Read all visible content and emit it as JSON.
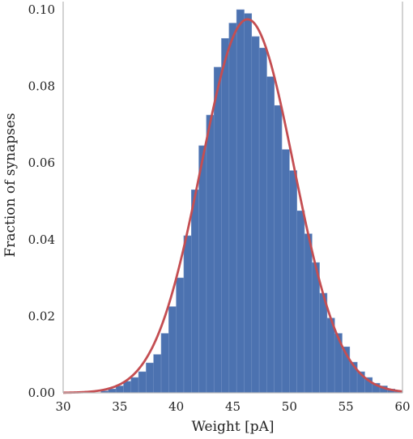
{
  "chart_data": {
    "type": "bar",
    "title": "",
    "xlabel": "Weight [pA]",
    "ylabel": "Fraction of synapses",
    "xlim": [
      30,
      60
    ],
    "ylim": [
      0,
      0.1
    ],
    "xticks": [
      30,
      35,
      40,
      45,
      50,
      55,
      60
    ],
    "xtick_labels": [
      "30",
      "35",
      "40",
      "45",
      "50",
      "55",
      "60"
    ],
    "yticks": [
      0,
      0.02,
      0.04,
      0.06,
      0.08,
      0.1
    ],
    "ytick_labels": [
      "0.00",
      "0.02",
      "0.04",
      "0.06",
      "0.08",
      "0.10"
    ],
    "grid": false,
    "bin_width": 0.667,
    "bins": [
      {
        "x": 33.67,
        "y": 0.0005
      },
      {
        "x": 34.33,
        "y": 0.001
      },
      {
        "x": 35.0,
        "y": 0.0018
      },
      {
        "x": 35.67,
        "y": 0.003
      },
      {
        "x": 36.33,
        "y": 0.004
      },
      {
        "x": 37.0,
        "y": 0.0055
      },
      {
        "x": 37.67,
        "y": 0.0078
      },
      {
        "x": 38.33,
        "y": 0.01
      },
      {
        "x": 39.0,
        "y": 0.0155
      },
      {
        "x": 39.67,
        "y": 0.0225
      },
      {
        "x": 40.33,
        "y": 0.03
      },
      {
        "x": 41.0,
        "y": 0.041
      },
      {
        "x": 41.67,
        "y": 0.053
      },
      {
        "x": 42.33,
        "y": 0.0645
      },
      {
        "x": 43.0,
        "y": 0.0725
      },
      {
        "x": 43.67,
        "y": 0.085
      },
      {
        "x": 44.33,
        "y": 0.0925
      },
      {
        "x": 45.0,
        "y": 0.0965
      },
      {
        "x": 45.67,
        "y": 0.1
      },
      {
        "x": 46.33,
        "y": 0.099
      },
      {
        "x": 47.0,
        "y": 0.093
      },
      {
        "x": 47.67,
        "y": 0.09
      },
      {
        "x": 48.33,
        "y": 0.0825
      },
      {
        "x": 49.0,
        "y": 0.075
      },
      {
        "x": 49.67,
        "y": 0.0635
      },
      {
        "x": 50.33,
        "y": 0.058
      },
      {
        "x": 51.0,
        "y": 0.0475
      },
      {
        "x": 51.67,
        "y": 0.0415
      },
      {
        "x": 52.33,
        "y": 0.034
      },
      {
        "x": 53.0,
        "y": 0.026
      },
      {
        "x": 53.67,
        "y": 0.0195
      },
      {
        "x": 54.33,
        "y": 0.0155
      },
      {
        "x": 55.0,
        "y": 0.012
      },
      {
        "x": 55.67,
        "y": 0.008
      },
      {
        "x": 56.33,
        "y": 0.0055
      },
      {
        "x": 57.0,
        "y": 0.004
      },
      {
        "x": 57.67,
        "y": 0.0025
      },
      {
        "x": 58.33,
        "y": 0.0018
      },
      {
        "x": 59.0,
        "y": 0.001
      },
      {
        "x": 59.67,
        "y": 0.0005
      }
    ],
    "fit_curve": {
      "type": "gaussian",
      "mean": 46.3,
      "sd": 4.1,
      "peak": 0.0975
    },
    "colors": {
      "bars": "#4c72b0",
      "curve": "#c44e52",
      "axes": "#bbbbbb"
    }
  }
}
